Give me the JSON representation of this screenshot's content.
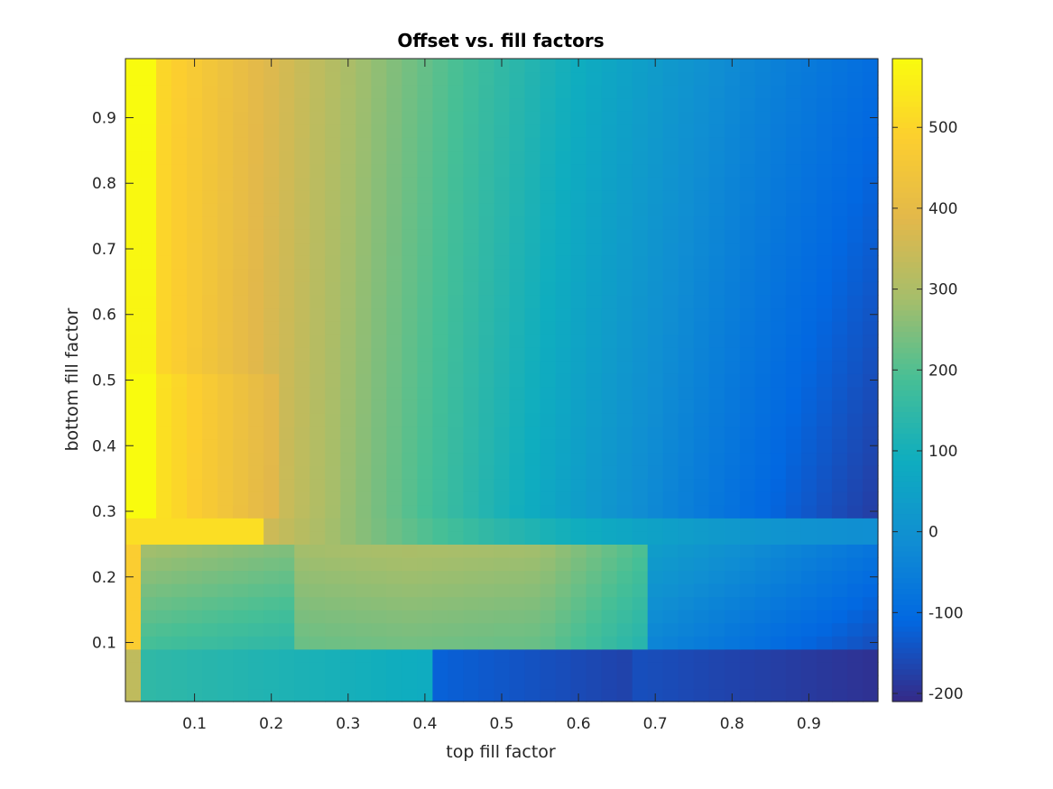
{
  "chart_data": {
    "type": "heatmap",
    "title": "Offset vs. fill factors",
    "xlabel": "top fill factor",
    "ylabel": "bottom fill factor",
    "xlim": [
      0.01,
      0.99
    ],
    "ylim": [
      0.01,
      0.99
    ],
    "xticks": [
      "0.1",
      "0.2",
      "0.3",
      "0.4",
      "0.5",
      "0.6",
      "0.7",
      "0.8",
      "0.9"
    ],
    "yticks": [
      "0.1",
      "0.2",
      "0.3",
      "0.4",
      "0.5",
      "0.6",
      "0.7",
      "0.8",
      "0.9"
    ],
    "colorbar": {
      "range": [
        -210,
        585
      ],
      "ticks": [
        "500",
        "400",
        "300",
        "200",
        "100",
        "0",
        "-100",
        "-200"
      ],
      "colormap": "parula"
    },
    "grid_size": [
      49,
      49
    ],
    "regions": {
      "upper_left_max": 585,
      "lower_right_min": -210,
      "boundary_y": [
        0.08,
        0.25,
        0.3
      ]
    },
    "colormap_stops": [
      "#352a87",
      "#0268e1",
      "#108ed2",
      "#0fadbf",
      "#46bf96",
      "#a5be6b",
      "#e2b84b",
      "#fcce2f",
      "#f9fb0e"
    ]
  }
}
